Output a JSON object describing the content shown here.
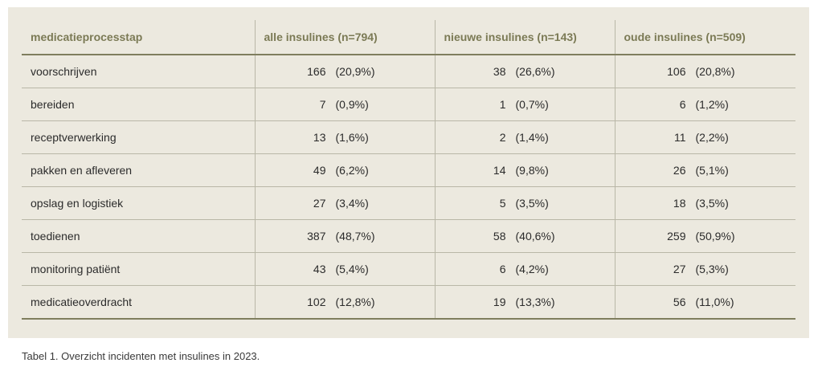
{
  "table": {
    "headers": [
      "medicatieprocesstap",
      "alle insulines (n=794)",
      "nieuwe insulines (n=143)",
      "oude insulines (n=509)"
    ],
    "rows": [
      {
        "label": "voorschrijven",
        "cells": [
          {
            "n": "166",
            "p": "(20,9%)"
          },
          {
            "n": "38",
            "p": "(26,6%)"
          },
          {
            "n": "106",
            "p": "(20,8%)"
          }
        ]
      },
      {
        "label": "bereiden",
        "cells": [
          {
            "n": "7",
            "p": "(0,9%)"
          },
          {
            "n": "1",
            "p": "(0,7%)"
          },
          {
            "n": "6",
            "p": "(1,2%)"
          }
        ]
      },
      {
        "label": "receptverwerking",
        "cells": [
          {
            "n": "13",
            "p": "(1,6%)"
          },
          {
            "n": "2",
            "p": "(1,4%)"
          },
          {
            "n": "11",
            "p": "(2,2%)"
          }
        ]
      },
      {
        "label": "pakken en afleveren",
        "cells": [
          {
            "n": "49",
            "p": "(6,2%)"
          },
          {
            "n": "14",
            "p": "(9,8%)"
          },
          {
            "n": "26",
            "p": "(5,1%)"
          }
        ]
      },
      {
        "label": "opslag en logistiek",
        "cells": [
          {
            "n": "27",
            "p": "(3,4%)"
          },
          {
            "n": "5",
            "p": "(3,5%)"
          },
          {
            "n": "18",
            "p": "(3,5%)"
          }
        ]
      },
      {
        "label": "toedienen",
        "cells": [
          {
            "n": "387",
            "p": "(48,7%)"
          },
          {
            "n": "58",
            "p": "(40,6%)"
          },
          {
            "n": "259",
            "p": "(50,9%)"
          }
        ]
      },
      {
        "label": "monitoring patiënt",
        "cells": [
          {
            "n": "43",
            "p": "(5,4%)"
          },
          {
            "n": "6",
            "p": "(4,2%)"
          },
          {
            "n": "27",
            "p": "(5,3%)"
          }
        ]
      },
      {
        "label": "medicatieoverdracht",
        "cells": [
          {
            "n": "102",
            "p": "(12,8%)"
          },
          {
            "n": "19",
            "p": "(13,3%)"
          },
          {
            "n": "56",
            "p": "(11,0%)"
          }
        ]
      }
    ]
  },
  "caption": "Tabel 1. Overzicht incidenten met insulines in 2023.",
  "colors": {
    "panel_background": "#ece9df",
    "header_text": "#7b7a55",
    "rule": "#7f7e5e",
    "grid": "#b9b7a7"
  }
}
